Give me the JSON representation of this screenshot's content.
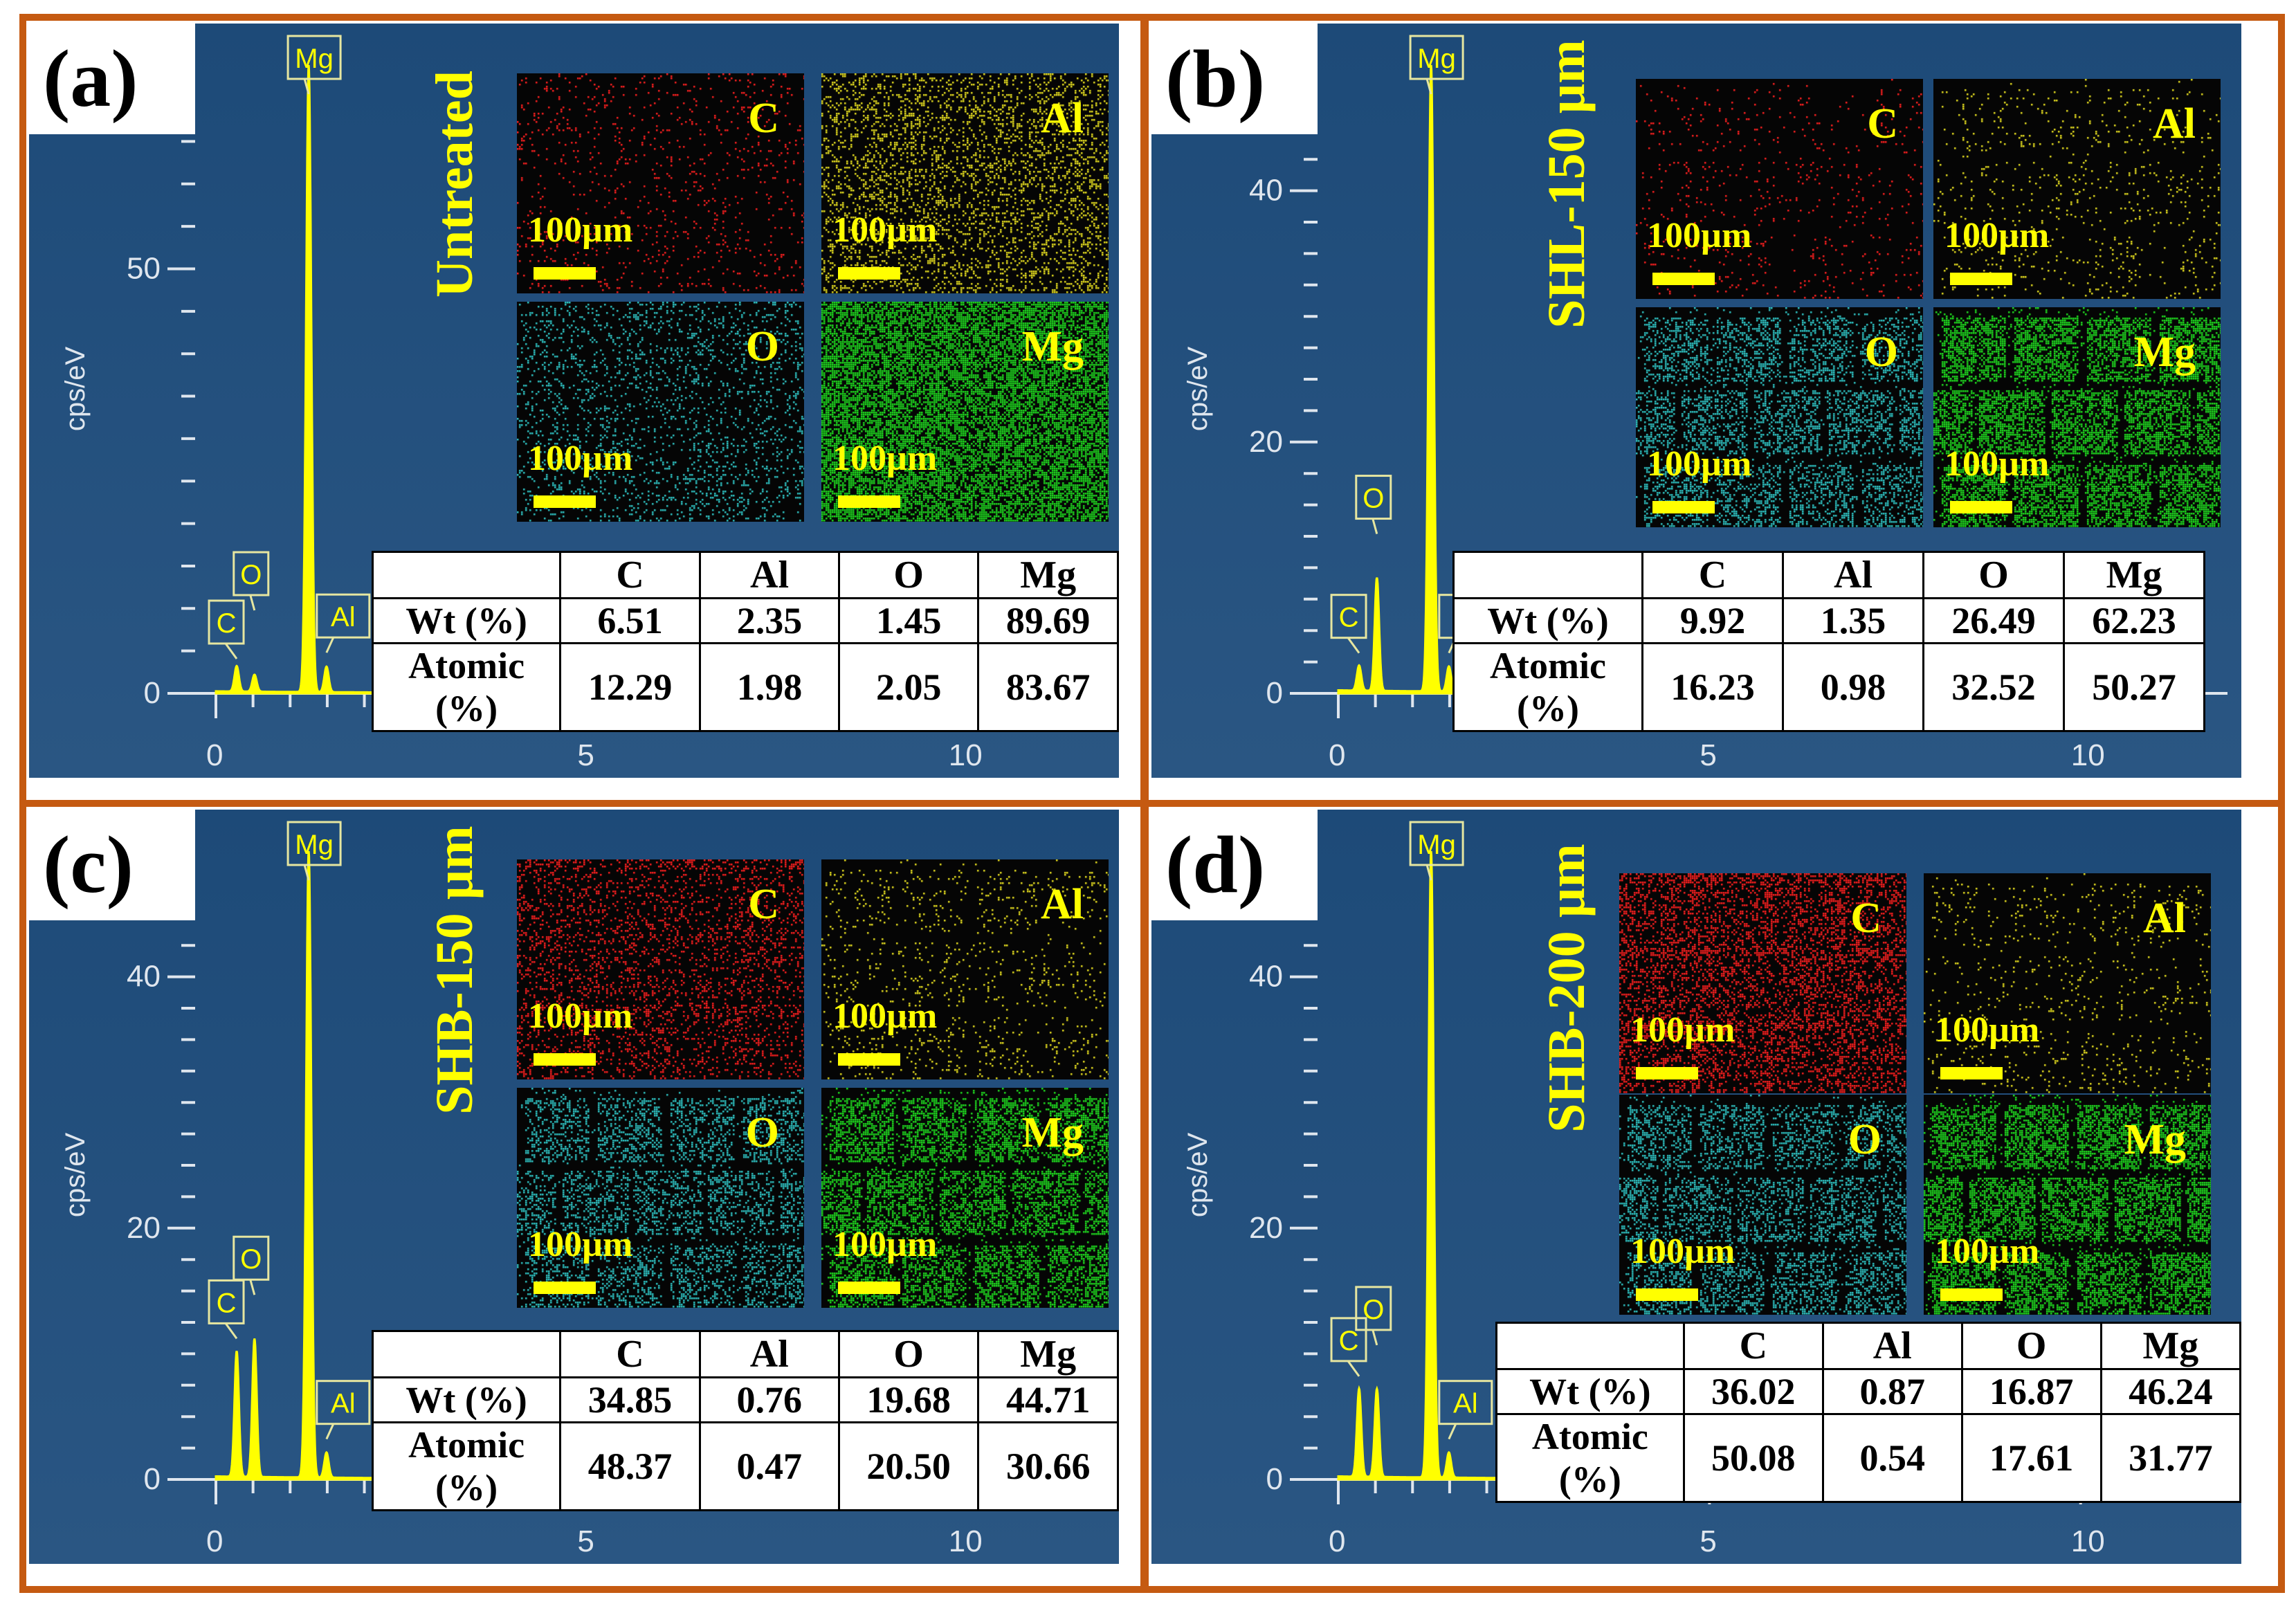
{
  "colors": {
    "frame": "#c55a11",
    "bg_top": "#1f4e79",
    "bg_bottom": "#264f78",
    "spectrum": "#ffff00",
    "axis": "#dfe6ee",
    "accent": "#ffff00"
  },
  "common": {
    "ylabel": "cps/eV",
    "scale_bar": "100µm",
    "columns": [
      "C",
      "Al",
      "O",
      "Mg"
    ],
    "row_labels": [
      "Wt (%)",
      "Atomic (%)"
    ],
    "x_ticks": [
      "0",
      "5",
      "10"
    ]
  },
  "panels": [
    {
      "label": "(a)",
      "sample": "Untreated",
      "y_ticks": [
        "0",
        "50"
      ],
      "y_tick_values": [
        0,
        50
      ],
      "ymax": 74,
      "maps": [
        "C",
        "Al",
        "O",
        "Mg"
      ],
      "wt": [
        "6.51",
        "2.35",
        "1.45",
        "89.69"
      ],
      "atomic": [
        "12.29",
        "1.98",
        "2.05",
        "83.67"
      ]
    },
    {
      "label": "(b)",
      "sample": "SHL-150 µm",
      "y_ticks": [
        "0",
        "20",
        "40"
      ],
      "y_tick_values": [
        0,
        20,
        40
      ],
      "ymax": 50,
      "maps": [
        "C",
        "Al",
        "O",
        "Mg"
      ],
      "wt": [
        "9.92",
        "1.35",
        "26.49",
        "62.23"
      ],
      "atomic": [
        "16.23",
        "0.98",
        "32.52",
        "50.27"
      ]
    },
    {
      "label": "(c)",
      "sample": "SHB-150 µm",
      "y_ticks": [
        "0",
        "20",
        "40"
      ],
      "y_tick_values": [
        0,
        20,
        40
      ],
      "ymax": 50,
      "maps": [
        "C",
        "Al",
        "O",
        "Mg"
      ],
      "wt": [
        "34.85",
        "0.76",
        "19.68",
        "44.71"
      ],
      "atomic": [
        "48.37",
        "0.47",
        "20.50",
        "30.66"
      ]
    },
    {
      "label": "(d)",
      "sample": "SHB-200 µm",
      "y_ticks": [
        "0",
        "20",
        "40"
      ],
      "y_tick_values": [
        0,
        20,
        40
      ],
      "ymax": 50,
      "maps": [
        "C",
        "Al",
        "O",
        "Mg"
      ],
      "wt": [
        "36.02",
        "0.87",
        "16.87",
        "46.24"
      ],
      "atomic": [
        "50.08",
        "0.54",
        "17.61",
        "31.77"
      ]
    }
  ],
  "chart_data": [
    {
      "type": "line",
      "title": "",
      "xlabel": "",
      "ylabel": "cps/eV",
      "xlim": [
        0,
        11
      ],
      "ylim": [
        0,
        74
      ],
      "peaks": [
        {
          "name": "C",
          "x": 0.28,
          "y": 3
        },
        {
          "name": "O",
          "x": 0.52,
          "y": 2
        },
        {
          "name": "Mg",
          "x": 1.25,
          "y": 74
        },
        {
          "name": "Al",
          "x": 1.49,
          "y": 3
        }
      ]
    },
    {
      "type": "line",
      "title": "",
      "xlabel": "",
      "ylabel": "cps/eV",
      "xlim": [
        0,
        11
      ],
      "ylim": [
        0,
        50
      ],
      "peaks": [
        {
          "name": "C",
          "x": 0.28,
          "y": 2
        },
        {
          "name": "O",
          "x": 0.52,
          "y": 9
        },
        {
          "name": "Mg",
          "x": 1.25,
          "y": 50
        },
        {
          "name": "Al",
          "x": 1.49,
          "y": 2
        }
      ]
    },
    {
      "type": "line",
      "title": "",
      "xlabel": "",
      "ylabel": "cps/eV",
      "xlim": [
        0,
        11
      ],
      "ylim": [
        0,
        50
      ],
      "peaks": [
        {
          "name": "C",
          "x": 0.28,
          "y": 10
        },
        {
          "name": "O",
          "x": 0.52,
          "y": 11
        },
        {
          "name": "Mg",
          "x": 1.25,
          "y": 50
        },
        {
          "name": "Al",
          "x": 1.49,
          "y": 2
        }
      ]
    },
    {
      "type": "line",
      "title": "",
      "xlabel": "",
      "ylabel": "cps/eV",
      "xlim": [
        0,
        11
      ],
      "ylim": [
        0,
        50
      ],
      "peaks": [
        {
          "name": "C",
          "x": 0.28,
          "y": 7
        },
        {
          "name": "O",
          "x": 0.52,
          "y": 7
        },
        {
          "name": "Mg",
          "x": 1.25,
          "y": 50
        },
        {
          "name": "Al",
          "x": 1.49,
          "y": 2
        }
      ]
    }
  ]
}
